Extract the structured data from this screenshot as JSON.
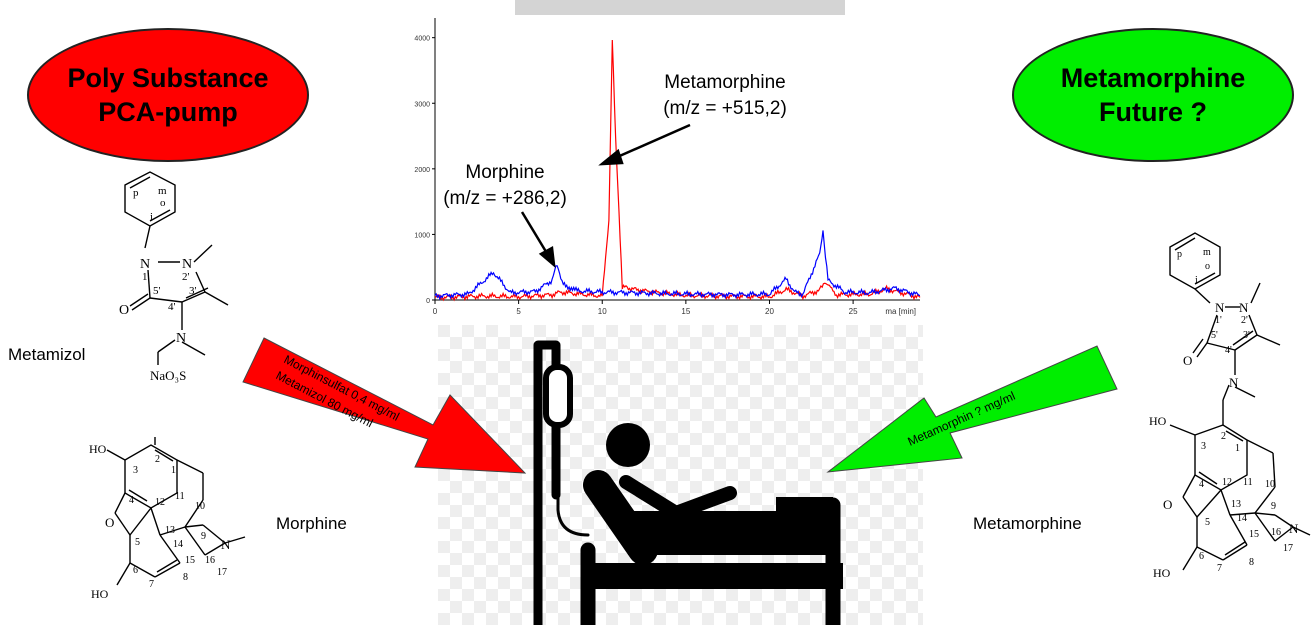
{
  "header_box": {
    "text": ""
  },
  "left_ellipse": {
    "line1": "Poly Substance",
    "line2": "PCA-pump",
    "color": "#ff0000"
  },
  "right_ellipse": {
    "line1": "Metamorphine",
    "line2": "Future ?",
    "color": "#00ee00"
  },
  "labels": {
    "metamizol": "Metamizol",
    "morphine": "Morphine",
    "metamorphine": "Metamorphine",
    "naO3S": "NaO₃S"
  },
  "peaks": {
    "metamorphine_name": "Metamorphine",
    "metamorphine_mz": "(m/z = +515,2)",
    "morphine_name": "Morphine",
    "morphine_mz": "(m/z = +286,2)"
  },
  "arrows": {
    "left_line1": "Morphinsulfat   0,4 mg/ml",
    "left_line2": "Metamizol        80 mg/ml",
    "right": "Metamorphin ? mg/ml",
    "left_color": "#ff0000",
    "right_color": "#00ee00"
  },
  "chart_data": {
    "type": "line",
    "x_ticks": [
      "0",
      "5",
      "10",
      "15",
      "20",
      "25"
    ],
    "x_unit_label": "ma [min]",
    "y_ticks": [
      "0",
      "1000",
      "2000",
      "3000",
      "4000"
    ],
    "xlim": [
      0,
      29
    ],
    "ylim": [
      0,
      4300
    ],
    "series": [
      {
        "color": "#ff0000",
        "x": [
          0,
          3,
          5,
          7,
          7.5,
          10,
          10.4,
          10.6,
          10.8,
          11.2,
          12,
          13,
          15,
          20,
          21,
          22,
          23,
          23.3,
          24,
          26,
          27,
          29
        ],
        "y": [
          40,
          60,
          50,
          80,
          120,
          60,
          1200,
          4000,
          2500,
          200,
          160,
          120,
          70,
          50,
          160,
          60,
          150,
          280,
          80,
          90,
          170,
          40
        ]
      },
      {
        "color": "#0000ff",
        "x": [
          0,
          2,
          3.5,
          4.5,
          6,
          7,
          7.3,
          7.6,
          8.5,
          10,
          12,
          15,
          18,
          20,
          21,
          21.5,
          22,
          23,
          23.2,
          23.5,
          24.5,
          26,
          27.5,
          29
        ],
        "y": [
          60,
          90,
          420,
          110,
          130,
          300,
          560,
          250,
          140,
          120,
          110,
          90,
          80,
          90,
          320,
          120,
          90,
          700,
          1050,
          300,
          120,
          110,
          180,
          70
        ]
      }
    ]
  },
  "atom_labels": {
    "p": "p",
    "m": "m",
    "o": "o",
    "i": "i",
    "N": "N",
    "O": "O",
    "HO": "HO",
    "n1": "1'",
    "n2": "2'",
    "n3": "3'",
    "n4": "4'",
    "n5": "5'",
    "c1": "1",
    "c2": "2",
    "c3": "3",
    "c4": "4",
    "c5": "5",
    "c6": "6",
    "c7": "7",
    "c8": "8",
    "c9": "9",
    "c10": "10",
    "c11": "11",
    "c12": "12",
    "c13": "13",
    "c14": "14",
    "c15": "15",
    "c16": "16",
    "c17": "17"
  }
}
